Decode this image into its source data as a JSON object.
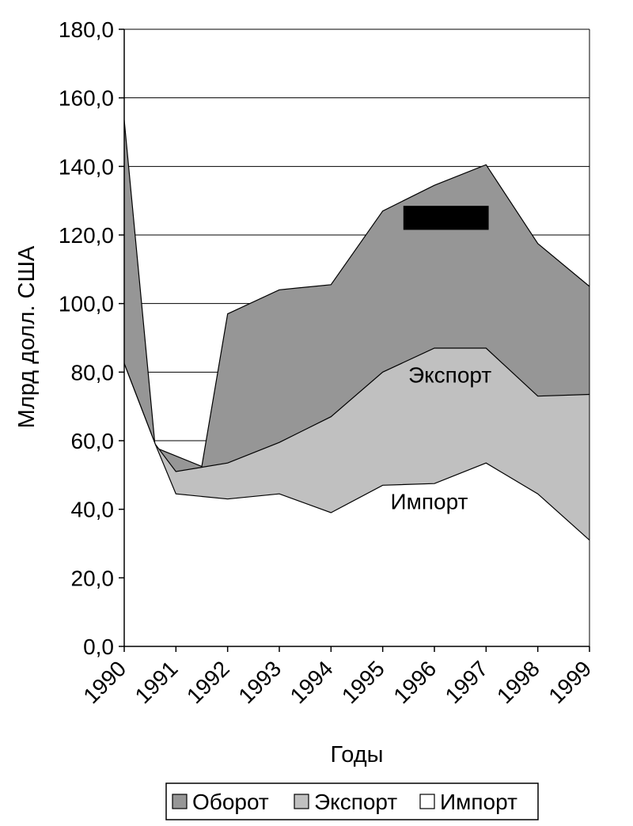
{
  "chart_data": {
    "type": "area",
    "xlabel": "Годы",
    "ylabel": "Млрд долл. США",
    "ylim": [
      0,
      180
    ],
    "y_ticks": [
      "0,0",
      "20,0",
      "40,0",
      "60,0",
      "80,0",
      "100,0",
      "120,0",
      "140,0",
      "160,0",
      "180,0"
    ],
    "categories": [
      "1990",
      "1991",
      "1992",
      "1993",
      "1994",
      "1995",
      "1996",
      "1997",
      "1998",
      "1999"
    ],
    "grid": true,
    "legend_position": "bottom",
    "series": [
      {
        "name": "Оборот",
        "color": "#969696",
        "points": [
          [
            1990,
            153.5
          ],
          [
            1990.6,
            58
          ],
          [
            1991.5,
            52.5
          ],
          [
            1992,
            97
          ],
          [
            1993,
            104
          ],
          [
            1994,
            105.5
          ],
          [
            1995,
            127
          ],
          [
            1996,
            134.5
          ],
          [
            1997,
            140.5
          ],
          [
            1998,
            117.5
          ],
          [
            1999,
            105
          ]
        ]
      },
      {
        "name": "Экспорт",
        "color": "#c0c0c0",
        "points": [
          [
            1990,
            82.5
          ],
          [
            1990.6,
            59
          ],
          [
            1991,
            51
          ],
          [
            1992,
            53.5
          ],
          [
            1993,
            59.5
          ],
          [
            1994,
            67
          ],
          [
            1995,
            80
          ],
          [
            1996,
            87
          ],
          [
            1997,
            87
          ],
          [
            1998,
            73
          ],
          [
            1999,
            73.5
          ]
        ]
      },
      {
        "name": "Импорт",
        "color": "#ffffff",
        "points": [
          [
            1990,
            82.5
          ],
          [
            1990.6,
            59
          ],
          [
            1991,
            44.5
          ],
          [
            1992,
            43
          ],
          [
            1993,
            44.5
          ],
          [
            1994,
            39
          ],
          [
            1995,
            47
          ],
          [
            1996,
            47.5
          ],
          [
            1997,
            53.5
          ],
          [
            1998,
            44.5
          ],
          [
            1999,
            31
          ]
        ]
      }
    ],
    "annotations": [
      {
        "text": "Экспорт",
        "x": 1996.3,
        "y": 77
      },
      {
        "text": "Импорт",
        "x": 1995.9,
        "y": 40
      }
    ],
    "markers": [
      {
        "shape": "black-rectangle",
        "x0": 1995.4,
        "x1": 1997.05,
        "y0": 121.5,
        "y1": 128.5,
        "color": "#000000"
      }
    ]
  }
}
